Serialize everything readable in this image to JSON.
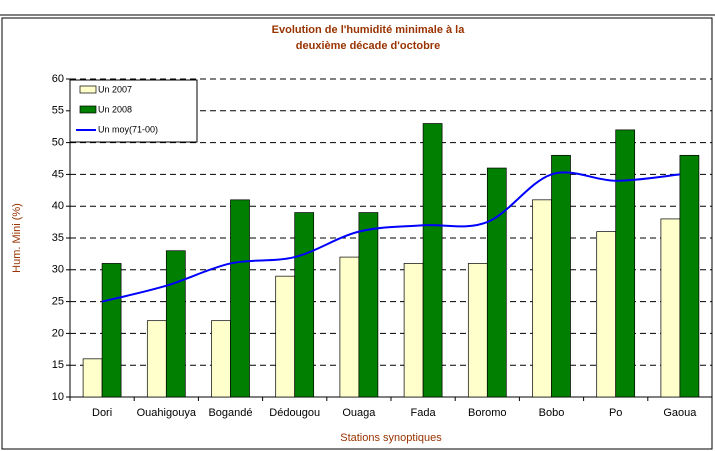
{
  "chart_data": {
    "type": "bar",
    "title": [
      "Evolution de l'humidité minimale à la",
      "deuxième décade d'octobre"
    ],
    "y_label": "Hum. Mini (%)",
    "x_label": "Stations synoptiques",
    "categories": [
      "Dori",
      "Ouahigouya",
      "Bogandé",
      "Dédougou",
      "Ouaga",
      "Fada",
      "Boromo",
      "Bobo",
      "Po",
      "Gaoua"
    ],
    "series": [
      {
        "name": "Un 2007",
        "type": "bar",
        "color": "#ffffcc",
        "values": [
          16,
          22,
          22,
          29,
          32,
          31,
          31,
          41,
          36,
          38
        ]
      },
      {
        "name": "Un 2008",
        "type": "bar",
        "color": "#007f00",
        "values": [
          31,
          33,
          41,
          39,
          39,
          53,
          46,
          48,
          52,
          48
        ]
      },
      {
        "name": "Un moy(71-00)",
        "type": "line",
        "color": "#0000ff",
        "values": [
          25,
          27.5,
          31,
          32,
          36,
          37,
          37.5,
          45,
          44,
          45
        ]
      }
    ],
    "ylim": [
      10,
      60
    ],
    "yticks": [
      10,
      15,
      20,
      25,
      30,
      35,
      40,
      45,
      50,
      55,
      60
    ],
    "grid": true,
    "legend": "top-left"
  }
}
